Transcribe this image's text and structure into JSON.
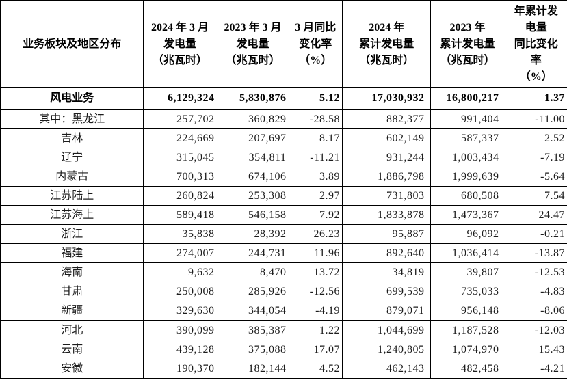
{
  "table": {
    "headers": [
      "业务板块及地区分布",
      "2024 年 3 月\n发电量\n（兆瓦时）",
      "2023 年 3 月\n发电量\n（兆瓦时）",
      "3 月同比\n变化率\n（%）",
      "2024 年\n累计发电量\n（兆瓦时）",
      "2023 年\n累计发电量\n（兆瓦时）",
      "年累计发\n电量\n同比变化\n率\n（%）"
    ],
    "rows": [
      {
        "label": "风电业务",
        "bold": true,
        "values": [
          "6,129,324",
          "5,830,876",
          "5.12",
          "17,030,932",
          "16,800,217",
          "1.37"
        ]
      },
      {
        "label": "其中：黑龙江",
        "values": [
          "257,702",
          "360,829",
          "-28.58",
          "882,377",
          "991,404",
          "-11.00"
        ]
      },
      {
        "label": "吉林",
        "values": [
          "224,669",
          "207,697",
          "8.17",
          "602,149",
          "587,337",
          "2.52"
        ]
      },
      {
        "label": "辽宁",
        "values": [
          "315,045",
          "354,811",
          "-11.21",
          "931,244",
          "1,003,434",
          "-7.19"
        ]
      },
      {
        "label": "内蒙古",
        "values": [
          "700,313",
          "674,106",
          "3.89",
          "1,886,798",
          "1,999,639",
          "-5.64"
        ]
      },
      {
        "label": "江苏陆上",
        "values": [
          "260,824",
          "253,308",
          "2.97",
          "731,803",
          "680,508",
          "7.54"
        ]
      },
      {
        "label": "江苏海上",
        "values": [
          "589,418",
          "546,158",
          "7.92",
          "1,833,878",
          "1,473,367",
          "24.47"
        ]
      },
      {
        "label": "浙江",
        "values": [
          "35,838",
          "28,392",
          "26.23",
          "95,887",
          "96,092",
          "-0.21"
        ]
      },
      {
        "label": "福建",
        "values": [
          "274,007",
          "244,731",
          "11.96",
          "892,640",
          "1,036,414",
          "-13.87"
        ]
      },
      {
        "label": "海南",
        "values": [
          "9,632",
          "8,470",
          "13.72",
          "34,819",
          "39,807",
          "-12.53"
        ]
      },
      {
        "label": "甘肃",
        "values": [
          "250,008",
          "285,926",
          "-12.56",
          "699,539",
          "735,033",
          "-4.83"
        ]
      },
      {
        "label": "新疆",
        "values": [
          "329,630",
          "344,054",
          "-4.19",
          "879,071",
          "956,148",
          "-8.06"
        ]
      },
      {
        "label": "河北",
        "divider_above": true,
        "values": [
          "390,099",
          "385,387",
          "1.22",
          "1,044,699",
          "1,187,528",
          "-12.03"
        ]
      },
      {
        "label": "云南",
        "values": [
          "439,128",
          "375,088",
          "17.07",
          "1,240,805",
          "1,074,970",
          "15.43"
        ]
      },
      {
        "label": "安徽",
        "values": [
          "190,370",
          "182,144",
          "4.52",
          "462,143",
          "482,458",
          "-4.21"
        ]
      }
    ]
  },
  "colors": {
    "border": "#000000",
    "header_text": "#000000",
    "body_text": "#1c1c1c",
    "background": "#ffffff"
  }
}
